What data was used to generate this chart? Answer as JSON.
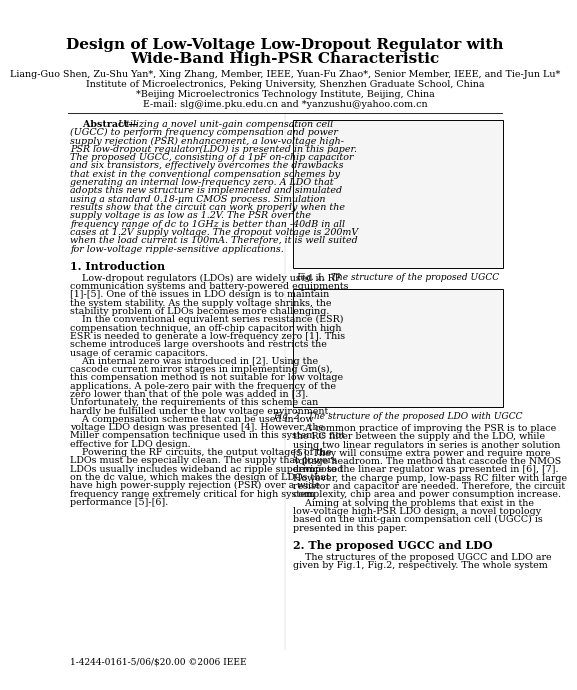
{
  "title_line1": "Design of Low-Voltage Low-Dropout Regulator with",
  "title_line2": "Wide-Band High-PSR Characteristic",
  "authors": "Liang-Guo Shen, Zu-Shu Yan*, Xing Zhang, Member, IEEE, Yuan-Fu Zhao*, Senior Member, IEEE, and Tie-Jun Lu*",
  "affiliation1": "Institute of Microelectronics, Peking University, Shenzhen Graduate School, China",
  "affiliation2": "*Beijing Microelectronics Technology Institute, Beijing, China",
  "email": "E-mail: slg@ime.pku.edu.cn and *yanzushu@yahoo.com.cn",
  "fig1_caption": "Fig. 1.  The structure of the proposed UGCC",
  "fig2_caption": "Fig. 2.  The structure of the proposed LDO with UGCC",
  "footer": "1-4244-0161-5/06/$20.00 ©2006 IEEE",
  "bg_color": "#ffffff",
  "text_color": "#000000",
  "abs_lines": [
    "    Abstract—Utilizing a novel unit-gain compensation cell",
    "(UGCC) to perform frequency compensation and power",
    "supply rejection (PSR) enhancement, a low-voltage high-",
    "PSR low-dropout regulator(LDO) is presented in this paper.",
    "The proposed UGCC, consisting of a 1pF on-chip capacitor",
    "and six transistors, effectively overcomes the drawbacks",
    "that exist in the conventional compensation schemes by",
    "generating an internal low-frequency zero. A LDO that",
    "adopts this new structure is implemented and simulated",
    "using a standard 0.18-μm CMOS process. Simulation",
    "results show that the circuit can work properly when the",
    "supply voltage is as low as 1.2V. The PSR over the",
    "frequency range of dc to 1GHz is better than -40dB in all",
    "cases at 1.2V supply voltage. The dropout voltage is 200mV",
    "when the load current is 100mA. Therefore, it is well suited",
    "for low-voltage ripple-sensitive applications."
  ],
  "sec1_title": "1. Introduction",
  "intro_lines": [
    "    Low-dropout regulators (LDOs) are widely used in RF",
    "communication systems and battery-powered equipments",
    "[1]-[5]. One of the issues in LDO design is to maintain",
    "the system stability. As the supply voltage shrinks, the",
    "stability problem of LDOs becomes more challenging.",
    "    In the conventional equivalent series resistance (ESR)",
    "compensation technique, an off-chip capacitor with high",
    "ESR is needed to generate a low-frequency zero [1]. This",
    "scheme introduces large overshoots and restricts the",
    "usage of ceramic capacitors.",
    "    An internal zero was introduced in [2]. Using the",
    "cascode current mirror stages in implementing Gm(s),",
    "this compensation method is not suitable for low voltage",
    "applications. A pole-zero pair with the frequency of the",
    "zero lower than that of the pole was added in [3].",
    "Unfortunately, the requirements of this scheme can",
    "hardly be fulfilled under the low voltage environment.",
    "    A compensation scheme that can be used in low",
    "voltage LDO design was presented [4]. However, the",
    "Miller compensation technique used in this system is not",
    "effective for LDO design.",
    "    Powering the RF circuits, the output voltages of the",
    "LDOs must be especially clean. The supply that powers",
    "LDOs usually includes wideband ac ripple superimposed",
    "on the dc value, which makes the design of LDOs that",
    "have high power-supply rejection (PSR) over a wide",
    "frequency range extremely critical for high system",
    "performance [5]-[6]."
  ],
  "right_lines": [
    "    A common practice of improving the PSR is to place",
    "the RC filter between the supply and the LDO, while",
    "using two linear regulators in series is another solution",
    "[5]. They will consume extra power and require more",
    "voltage headroom. The method that cascode the NMOS",
    "device to the linear regulator was presented in [6], [7].",
    "However, the charge pump, low-pass RC filter with large",
    "resistor and capacitor are needed. Therefore, the circuit",
    "complexity, chip area and power consumption increase.",
    "    Aiming at solving the problems that exist in the",
    "low-voltage high-PSR LDO design, a novel topology",
    "based on the unit-gain compensation cell (UGCC) is",
    "presented in this paper."
  ],
  "sec2_title": "2. The proposed UGCC and LDO",
  "sec2_lines": [
    "    The structures of the proposed UGCC and LDO are",
    "given by Fig.1, Fig.2, respectively. The whole system"
  ]
}
